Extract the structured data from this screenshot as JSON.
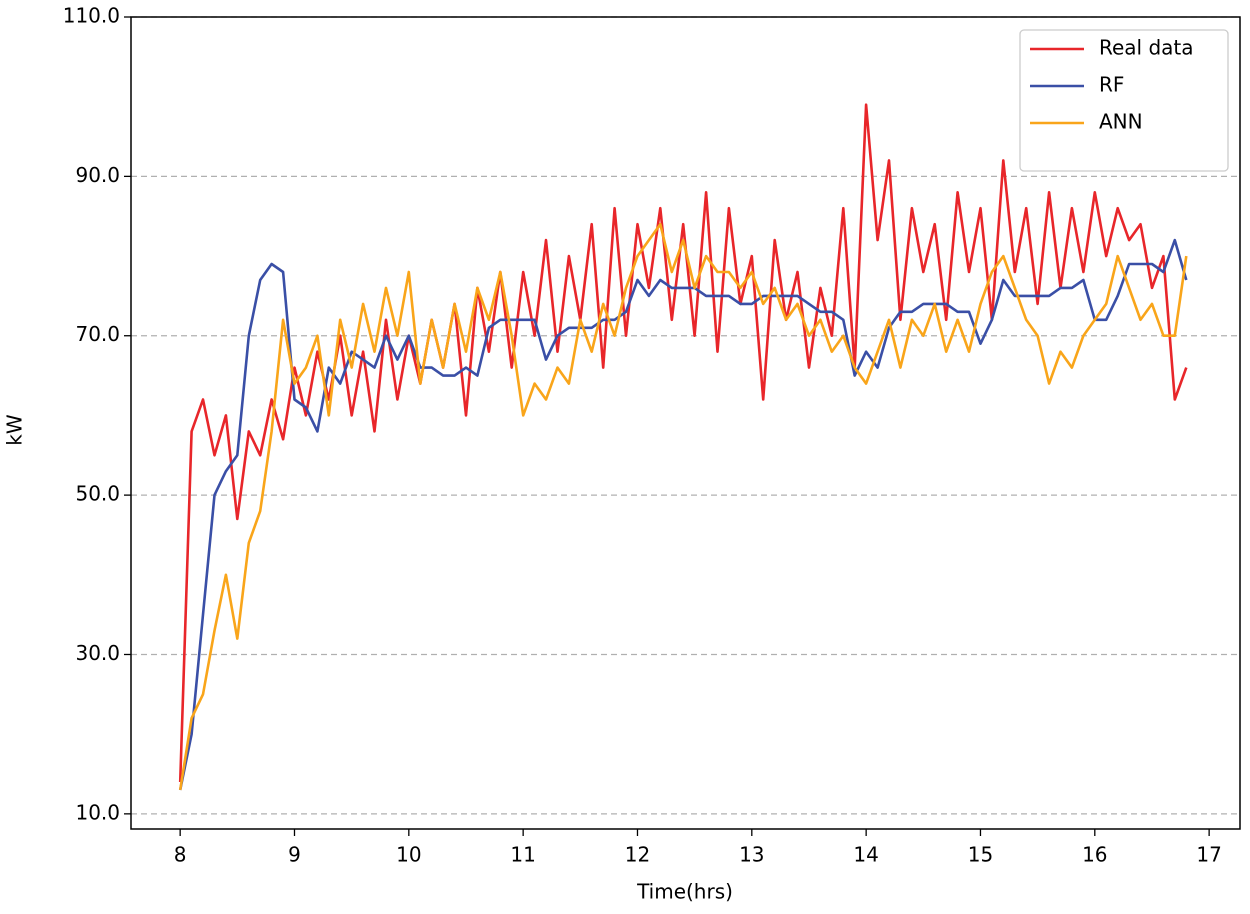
{
  "chart_data": {
    "type": "line",
    "xlabel": "Time(hrs)",
    "ylabel": "kW",
    "x": [
      8,
      8.1,
      8.2,
      8.3,
      8.4,
      8.5,
      8.6,
      8.7,
      8.8,
      8.9,
      9,
      9.1,
      9.2,
      9.3,
      9.4,
      9.5,
      9.6,
      9.7,
      9.8,
      9.9,
      10,
      10.1,
      10.2,
      10.3,
      10.4,
      10.5,
      10.6,
      10.7,
      10.8,
      10.9,
      11,
      11.1,
      11.2,
      11.3,
      11.4,
      11.5,
      11.6,
      11.7,
      11.8,
      11.9,
      12,
      12.1,
      12.2,
      12.3,
      12.4,
      12.5,
      12.6,
      12.7,
      12.8,
      12.9,
      13,
      13.1,
      13.2,
      13.3,
      13.4,
      13.5,
      13.6,
      13.7,
      13.8,
      13.9,
      14,
      14.1,
      14.2,
      14.3,
      14.4,
      14.5,
      14.6,
      14.7,
      14.8,
      14.9,
      15,
      15.1,
      15.2,
      15.3,
      15.4,
      15.5,
      15.6,
      15.7,
      15.8,
      15.9,
      16,
      16.1,
      16.2,
      16.3,
      16.4,
      16.5,
      16.6,
      16.7,
      16.8
    ],
    "series": [
      {
        "name": "Real data",
        "color": "#e8262a",
        "values": [
          14,
          58,
          62,
          55,
          60,
          47,
          58,
          55,
          62,
          57,
          66,
          60,
          68,
          62,
          70,
          60,
          68,
          58,
          72,
          62,
          70,
          64,
          72,
          66,
          74,
          60,
          76,
          68,
          78,
          66,
          78,
          70,
          82,
          68,
          80,
          72,
          84,
          66,
          86,
          70,
          84,
          76,
          86,
          72,
          84,
          70,
          88,
          68,
          86,
          74,
          80,
          62,
          82,
          72,
          78,
          66,
          76,
          70,
          86,
          66,
          99,
          82,
          92,
          72,
          86,
          78,
          84,
          72,
          88,
          78,
          86,
          72,
          92,
          78,
          86,
          74,
          88,
          76,
          86,
          78,
          88,
          80,
          86,
          82,
          84,
          76,
          80,
          62,
          66
        ]
      },
      {
        "name": "RF",
        "color": "#3a4fa6",
        "values": [
          13,
          20,
          35,
          50,
          53,
          55,
          70,
          77,
          79,
          78,
          62,
          61,
          58,
          66,
          64,
          68,
          67,
          66,
          70,
          67,
          70,
          66,
          66,
          65,
          65,
          66,
          65,
          71,
          72,
          72,
          72,
          72,
          67,
          70,
          71,
          71,
          71,
          72,
          72,
          73,
          77,
          75,
          77,
          76,
          76,
          76,
          75,
          75,
          75,
          74,
          74,
          75,
          75,
          75,
          75,
          74,
          73,
          73,
          72,
          65,
          68,
          66,
          71,
          73,
          73,
          74,
          74,
          74,
          73,
          73,
          69,
          72,
          77,
          75,
          75,
          75,
          75,
          76,
          76,
          77,
          72,
          72,
          75,
          79,
          79,
          79,
          78,
          82,
          77
        ]
      },
      {
        "name": "ANN",
        "color": "#f9a51a",
        "values": [
          13,
          22,
          25,
          33,
          40,
          32,
          44,
          48,
          58,
          72,
          64,
          66,
          70,
          60,
          72,
          66,
          74,
          68,
          76,
          70,
          78,
          64,
          72,
          66,
          74,
          68,
          76,
          72,
          78,
          70,
          60,
          64,
          62,
          66,
          64,
          72,
          68,
          74,
          70,
          76,
          80,
          82,
          84,
          78,
          82,
          76,
          80,
          78,
          78,
          76,
          78,
          74,
          76,
          72,
          74,
          70,
          72,
          68,
          70,
          66,
          64,
          68,
          72,
          66,
          72,
          70,
          74,
          68,
          72,
          68,
          74,
          78,
          80,
          76,
          72,
          70,
          64,
          68,
          66,
          70,
          72,
          74,
          80,
          76,
          72,
          74,
          70,
          70,
          80
        ]
      }
    ],
    "xlim": [
      7.57,
      17.27
    ],
    "xticks": [
      8,
      9,
      10,
      11,
      12,
      13,
      14,
      15,
      16,
      17
    ],
    "ylim": [
      8.1,
      110
    ],
    "yticks": [
      {
        "value": 10,
        "label": "10.0"
      },
      {
        "value": 30,
        "label": "30.0"
      },
      {
        "value": 50,
        "label": "50.0"
      },
      {
        "value": 70,
        "label": "70.0"
      },
      {
        "value": 90,
        "label": "90.0"
      },
      {
        "value": 110,
        "label": "110.0"
      }
    ],
    "grid": true,
    "legend": "upper right"
  }
}
